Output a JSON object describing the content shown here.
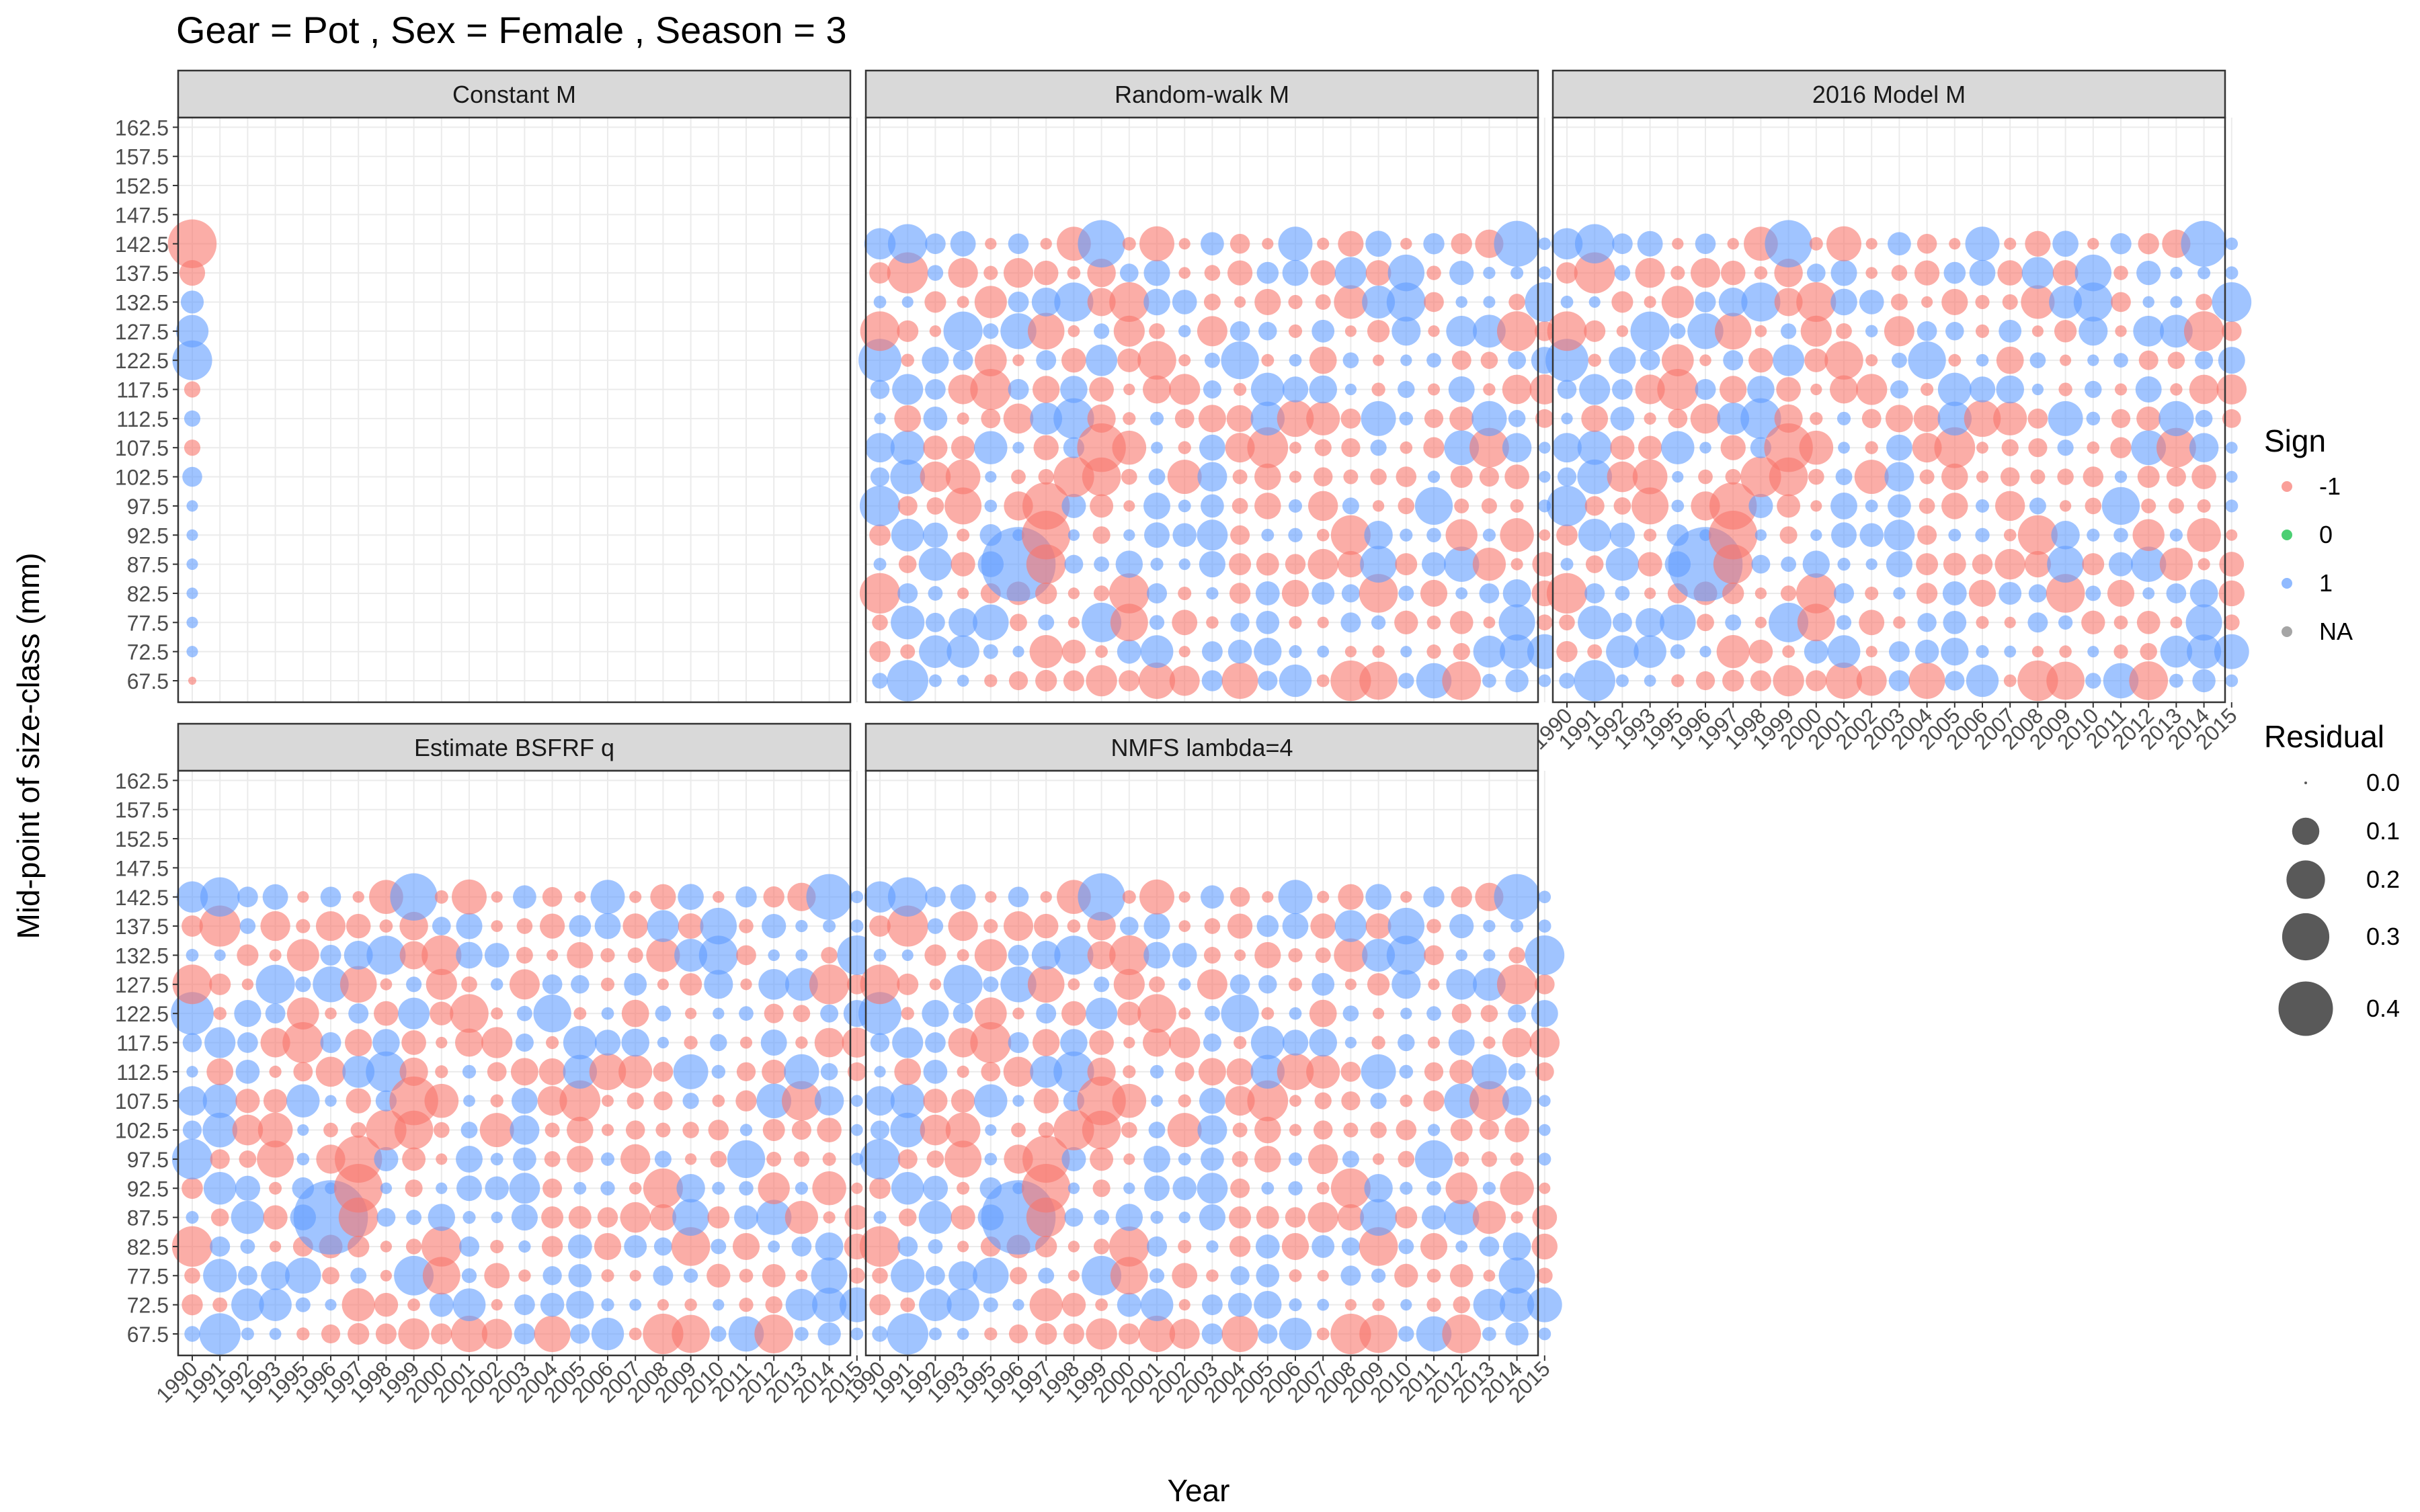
{
  "chart_data": {
    "type": "scatter",
    "title": "Gear = Pot , Sex = Female , Season = 3",
    "xlabel": "Year",
    "ylabel": "Mid-point of size-class (mm)",
    "x_ticks": [
      "1990",
      "1991",
      "1992",
      "1993",
      "1995",
      "1996",
      "1997",
      "1998",
      "1999",
      "2000",
      "2001",
      "2002",
      "2003",
      "2004",
      "2005",
      "2006",
      "2007",
      "2008",
      "2009",
      "2010",
      "2011",
      "2012",
      "2013",
      "2014",
      "2015"
    ],
    "y_ticks": [
      "162.5",
      "157.5",
      "152.5",
      "147.5",
      "142.5",
      "137.5",
      "132.5",
      "127.5",
      "122.5",
      "117.5",
      "112.5",
      "107.5",
      "102.5",
      "97.5",
      "92.5",
      "87.5",
      "82.5",
      "77.5",
      "72.5",
      "67.5"
    ],
    "y_values": [
      67.5,
      72.5,
      77.5,
      82.5,
      87.5,
      92.5,
      97.5,
      102.5,
      107.5,
      112.5,
      117.5,
      122.5,
      127.5,
      132.5,
      137.5,
      142.5,
      147.5,
      152.5,
      157.5,
      162.5
    ],
    "grid": true,
    "panels": [
      {
        "name": "Constant M"
      },
      {
        "name": "Random-walk M"
      },
      {
        "name": "2016 Model M"
      },
      {
        "name": "Estimate BSFRF q"
      },
      {
        "name": "NMFS lambda=4"
      }
    ],
    "constant_m_points": [
      {
        "x": "1990",
        "y": 142.5,
        "sign": -1,
        "residual": 0.18
      },
      {
        "x": "1990",
        "y": 137.5,
        "sign": -1,
        "residual": 0.05
      },
      {
        "x": "1990",
        "y": 132.5,
        "sign": 1,
        "residual": 0.04
      },
      {
        "x": "1990",
        "y": 127.5,
        "sign": 1,
        "residual": 0.08
      },
      {
        "x": "1990",
        "y": 122.5,
        "sign": 1,
        "residual": 0.12
      },
      {
        "x": "1990",
        "y": 117.5,
        "sign": -1,
        "residual": 0.02
      },
      {
        "x": "1990",
        "y": 112.5,
        "sign": 1,
        "residual": 0.02
      },
      {
        "x": "1990",
        "y": 107.5,
        "sign": -1,
        "residual": 0.02
      },
      {
        "x": "1990",
        "y": 102.5,
        "sign": 1,
        "residual": 0.03
      },
      {
        "x": "1990",
        "y": 97.5,
        "sign": 1,
        "residual": 0.01
      },
      {
        "x": "1990",
        "y": 92.5,
        "sign": 1,
        "residual": 0.01
      },
      {
        "x": "1990",
        "y": 87.5,
        "sign": 1,
        "residual": 0.01
      },
      {
        "x": "1990",
        "y": 82.5,
        "sign": 1,
        "residual": 0.01
      },
      {
        "x": "1990",
        "y": 77.5,
        "sign": 1,
        "residual": 0.01
      },
      {
        "x": "1990",
        "y": 72.5,
        "sign": 1,
        "residual": 0.01
      },
      {
        "x": "1990",
        "y": 67.5,
        "sign": -1,
        "residual": 0.005
      }
    ],
    "legend": {
      "sign_title": "Sign",
      "sign_items": [
        {
          "label": "-1",
          "color": "#f8766d"
        },
        {
          "label": "0",
          "color": "#00ba38"
        },
        {
          "label": "1",
          "color": "#619cff"
        },
        {
          "label": "NA",
          "color": "#7f7f7f"
        }
      ],
      "size_title": "Residual",
      "size_items": [
        "0.0",
        "0.1",
        "0.2",
        "0.3",
        "0.4"
      ],
      "position": "right"
    },
    "colors": {
      "negative": "#f8766d",
      "zero": "#00ba38",
      "positive": "#619cff",
      "na": "#7f7f7f",
      "strip": "#d9d9d9",
      "grid": "#ebebeb"
    }
  }
}
